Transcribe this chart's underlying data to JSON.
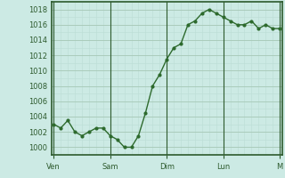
{
  "x_values": [
    0,
    3,
    6,
    9,
    12,
    15,
    18,
    21,
    24,
    27,
    30,
    33,
    36,
    39,
    42,
    45,
    48,
    51,
    54,
    57,
    60,
    63,
    66,
    69,
    72,
    75,
    78,
    81,
    84,
    87,
    90,
    93,
    96
  ],
  "y_values": [
    1003,
    1002.5,
    1003.5,
    1002,
    1001.5,
    1002,
    1002.5,
    1002.5,
    1001.5,
    1001,
    1000,
    1000,
    1001.5,
    1004.5,
    1008,
    1009.5,
    1011.5,
    1013,
    1013.5,
    1016,
    1016.5,
    1017.5,
    1018,
    1017.5,
    1017,
    1016.5,
    1016,
    1016,
    1016.5,
    1015.5,
    1016,
    1015.5,
    1015.5
  ],
  "x_tick_positions": [
    0,
    24,
    48,
    72,
    96
  ],
  "x_tick_labels": [
    "Ven",
    "Sam",
    "Dim",
    "Lun",
    "M"
  ],
  "y_tick_positions": [
    1000,
    1002,
    1004,
    1006,
    1008,
    1010,
    1012,
    1014,
    1016,
    1018
  ],
  "ylim": [
    999,
    1019
  ],
  "xlim": [
    -1,
    97
  ],
  "line_color": "#2d6a2d",
  "marker_color": "#2d6a2d",
  "bg_color": "#cceae4",
  "grid_color_major": "#aaccbb",
  "grid_color_minor": "#bbddd5",
  "axis_color": "#2d5a2d",
  "tick_label_color": "#2d5a2d",
  "vline_positions": [
    0,
    24,
    48,
    72,
    96
  ],
  "vline_color": "#2d5a2d"
}
